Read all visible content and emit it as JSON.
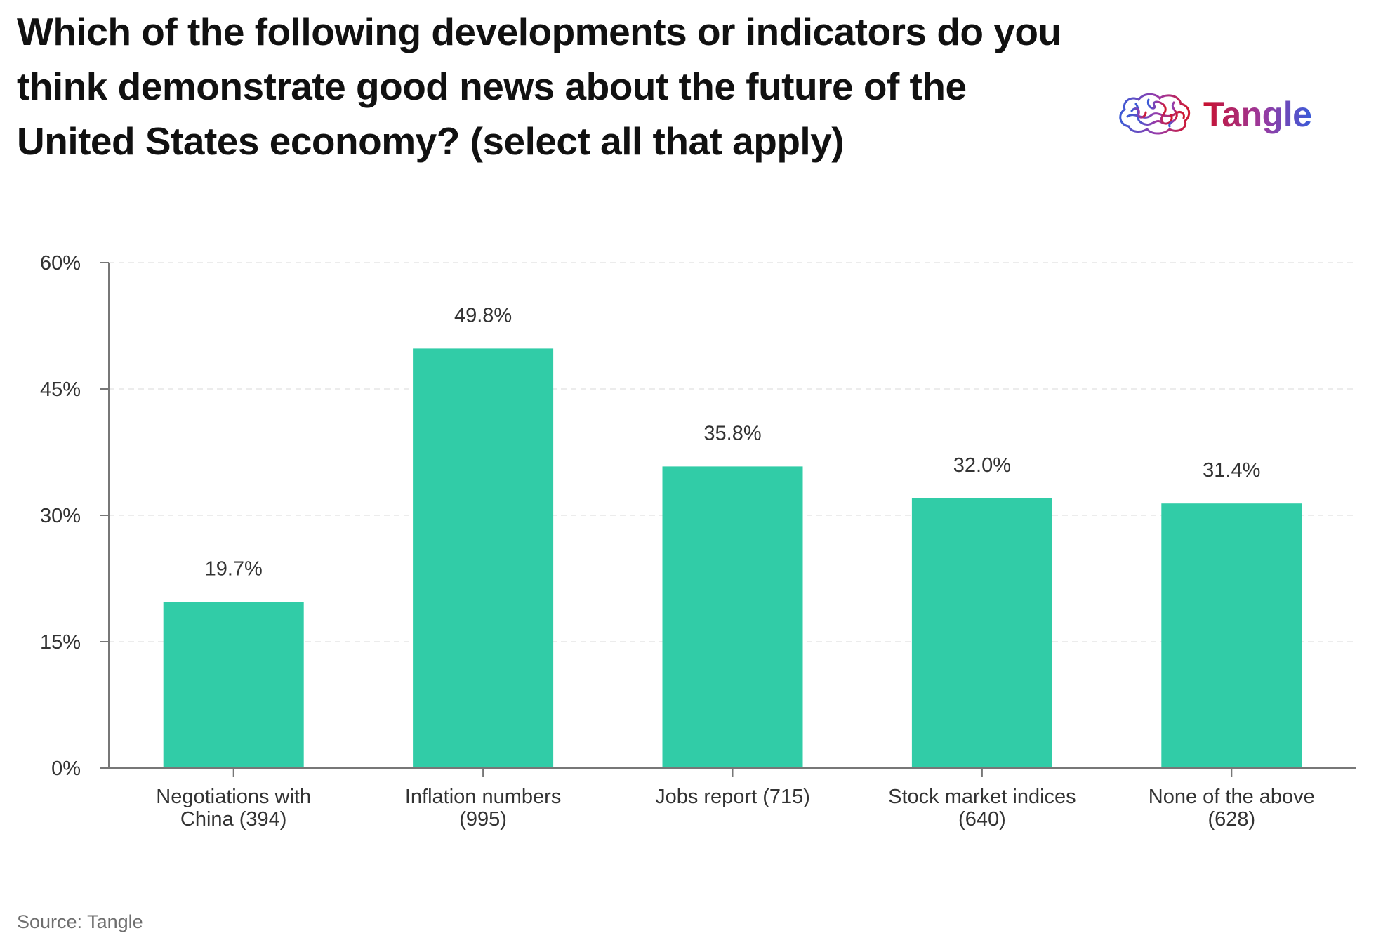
{
  "header": {
    "title": "Which of the following developments or indicators do you think demonstrate good news about the future of the United States economy? (select all that apply)"
  },
  "logo": {
    "icon": "tangled-brain-icon",
    "text": "Tangle"
  },
  "footer": {
    "source": "Source: Tangle"
  },
  "colors": {
    "bar": "#31cca7",
    "axis": "#777777",
    "grid": "#e6e6e6",
    "text": "#333333"
  },
  "chart_data": {
    "type": "bar",
    "title": "Which of the following developments or indicators do you think demonstrate good news about the future of the United States economy? (select all that apply)",
    "xlabel": "",
    "ylabel": "",
    "ylim": [
      0,
      60
    ],
    "yticks": [
      0,
      15,
      30,
      45,
      60
    ],
    "ytick_labels": [
      "0%",
      "15%",
      "30%",
      "45%",
      "60%"
    ],
    "grid": true,
    "legend": "none",
    "categories": [
      [
        "Negotiations with",
        "China (394)"
      ],
      [
        "Inflation numbers",
        "(995)"
      ],
      [
        "Jobs report (715)"
      ],
      [
        "Stock market indices",
        "(640)"
      ],
      [
        "None of the above",
        "(628)"
      ]
    ],
    "values": [
      19.7,
      49.8,
      35.8,
      32.0,
      31.4
    ],
    "data_labels": [
      "19.7%",
      "49.8%",
      "35.8%",
      "32.0%",
      "31.4%"
    ]
  }
}
